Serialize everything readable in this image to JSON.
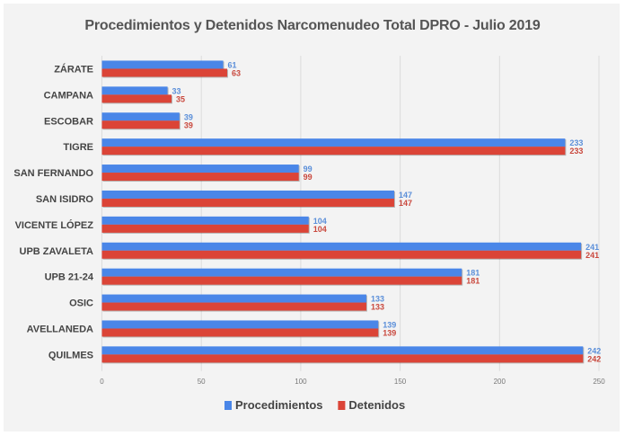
{
  "chart_data": {
    "type": "bar",
    "orientation": "horizontal",
    "title": "Procedimientos y Detenidos Narcomenudeo  Total DPRO - Julio 2019",
    "categories": [
      "ZÁRATE",
      "CAMPANA",
      "ESCOBAR",
      "TIGRE",
      "SAN FERNANDO",
      "SAN ISIDRO",
      "VICENTE LÓPEZ",
      "UPB ZAVALETA",
      "UPB 21-24",
      "OSIC",
      "AVELLANEDA",
      "QUILMES"
    ],
    "series": [
      {
        "name": "Procedimientos",
        "color": "#4a86e8",
        "label_color": "#5b8fd9",
        "values": [
          61,
          33,
          39,
          233,
          99,
          147,
          104,
          241,
          181,
          133,
          139,
          242
        ]
      },
      {
        "name": "Detenidos",
        "color": "#db4437",
        "label_color": "#c9483d",
        "values": [
          63,
          35,
          39,
          233,
          99,
          147,
          104,
          241,
          181,
          133,
          139,
          242
        ]
      }
    ],
    "xlim": [
      0,
      250
    ],
    "xticks": [
      "0",
      "50",
      "100",
      "150",
      "200",
      "250"
    ],
    "grid": true,
    "legend": "bottom",
    "xlabel": "",
    "ylabel": ""
  }
}
